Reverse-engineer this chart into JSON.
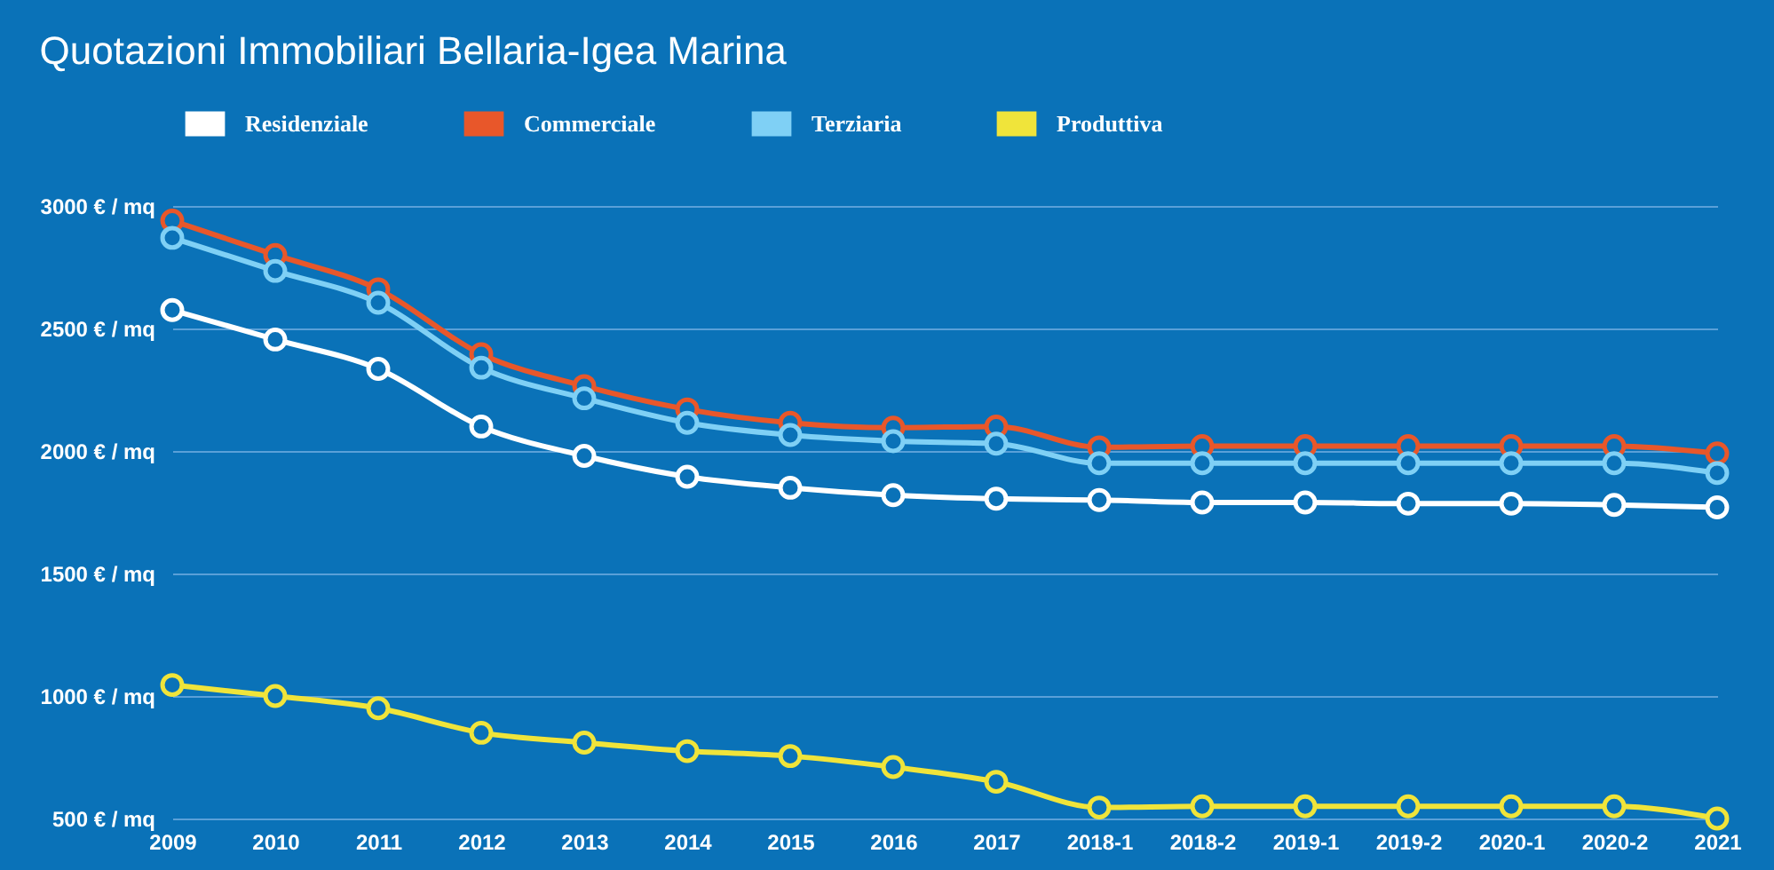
{
  "chart_data": {
    "type": "line",
    "title": "Quotazioni Immobiliari Bellaria-Igea Marina",
    "categories": [
      "2009",
      "2010",
      "2011",
      "2012",
      "2013",
      "2014",
      "2015",
      "2016",
      "2017",
      "2018-1",
      "2018-2",
      "2019-1",
      "2019-2",
      "2020-1",
      "2020-2",
      "2021"
    ],
    "series": [
      {
        "name": "Residenziale",
        "color": "#ffffff",
        "values": [
          2575,
          2455,
          2335,
          2100,
          1980,
          1895,
          1850,
          1820,
          1805,
          1800,
          1790,
          1790,
          1785,
          1785,
          1780,
          1770
        ]
      },
      {
        "name": "Commerciale",
        "color": "#e8572a",
        "values": [
          2940,
          2800,
          2660,
          2395,
          2265,
          2170,
          2115,
          2095,
          2100,
          2015,
          2020,
          2020,
          2020,
          2020,
          2020,
          1990
        ]
      },
      {
        "name": "Terziaria",
        "color": "#7fd0f5",
        "values": [
          2870,
          2735,
          2605,
          2340,
          2215,
          2115,
          2065,
          2040,
          2030,
          1950,
          1950,
          1950,
          1950,
          1950,
          1950,
          1910
        ]
      },
      {
        "name": "Produttiva",
        "color": "#f0e43a",
        "values": [
          1045,
          1000,
          950,
          850,
          810,
          775,
          755,
          710,
          650,
          545,
          550,
          550,
          550,
          550,
          550,
          500
        ]
      }
    ],
    "ylim": [
      500,
      3000
    ],
    "yticks": [
      {
        "value": 500,
        "label": "500 € / mq"
      },
      {
        "value": 1000,
        "label": "1000 € / mq"
      },
      {
        "value": 1500,
        "label": "1500 € / mq"
      },
      {
        "value": 2000,
        "label": "2000 € / mq"
      },
      {
        "value": 2500,
        "label": "2500 € / mq"
      },
      {
        "value": 3000,
        "label": "3000 € / mq"
      }
    ],
    "grid": "y",
    "legend": "top",
    "marker": "circle",
    "line_style": "solid"
  }
}
